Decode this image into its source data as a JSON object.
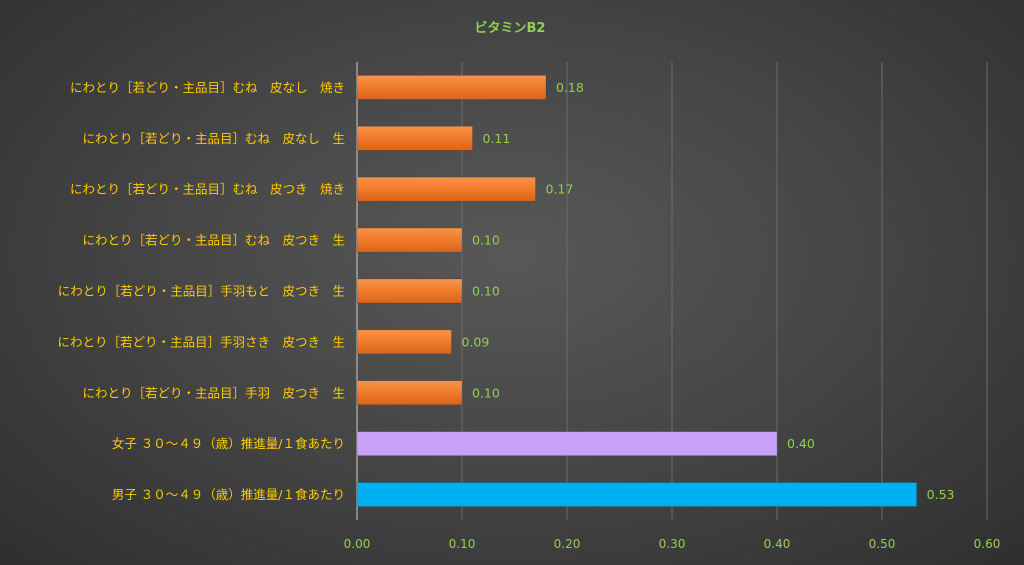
{
  "chart_data": {
    "type": "bar",
    "orientation": "horizontal",
    "title": "ビタミンB2",
    "xlabel": "",
    "ylabel": "",
    "xlim": [
      0,
      0.6
    ],
    "x_ticks": [
      "0.00",
      "0.10",
      "0.20",
      "0.30",
      "0.40",
      "0.50",
      "0.60"
    ],
    "grid": "vertical gridlines on",
    "legend": "none",
    "categories": [
      "にわとり［若どり・主品目］むね　皮なし　焼き",
      "にわとり［若どり・主品目］むね　皮なし　生",
      "にわとり［若どり・主品目］むね　皮つき　焼き",
      "にわとり［若どり・主品目］むね　皮つき　生",
      "にわとり［若どり・主品目］手羽もと　皮つき　生",
      "にわとり［若どり・主品目］手羽さき　皮つき　生",
      "にわとり［若どり・主品目］手羽　皮つき　生",
      "女子 ３０～４９（歳）推進量/１食あたり",
      "男子 ３０～４９（歳）推進量/１食あたり"
    ],
    "values": [
      0.18,
      0.11,
      0.17,
      0.1,
      0.1,
      0.09,
      0.1,
      0.4,
      0.533
    ],
    "value_labels": [
      "0.18",
      "0.11",
      "0.17",
      "0.10",
      "0.10",
      "0.09",
      "0.10",
      "0.40",
      "0.53"
    ],
    "bar_colors": [
      "#f07a2a",
      "#f07a2a",
      "#f07a2a",
      "#f07a2a",
      "#f07a2a",
      "#f07a2a",
      "#f07a2a",
      "#c9a0f7",
      "#00b0f0"
    ],
    "colors": {
      "title": "#92d050",
      "category_label": "#ffcc00",
      "value_label": "#92d050",
      "tick_label": "#92d050",
      "gridline": "#6c6c6c",
      "axis": "#cfcfcf"
    }
  }
}
